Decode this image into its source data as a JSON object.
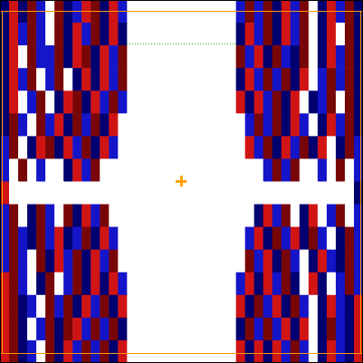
{
  "chart_data": {
    "type": "heatmap",
    "tick_labels": false,
    "color_range": [
      -2,
      2
    ],
    "cells": [
      [
        -2,
        1,
        -2,
        2,
        -1,
        0,
        2,
        -2,
        -1,
        1,
        2,
        -2,
        1,
        -1,
        0,
        0,
        0,
        0,
        0,
        0,
        0,
        0,
        0,
        0,
        0,
        0,
        -1,
        2,
        -1,
        2,
        -2,
        1,
        -1,
        2,
        0,
        -2,
        1,
        -1,
        2,
        -2
      ],
      [
        -2,
        1,
        -1,
        2,
        -1,
        0,
        2,
        -2,
        1,
        -1,
        2,
        -2,
        1,
        -2,
        0,
        0,
        0,
        0,
        0,
        0,
        0,
        0,
        0,
        0,
        0,
        0,
        -2,
        1,
        -1,
        2,
        -2,
        1,
        -1,
        2,
        0,
        -2,
        1,
        0,
        2,
        -2
      ],
      [
        -2,
        1,
        0,
        2,
        -1,
        -1,
        2,
        -2,
        1,
        2,
        -2,
        1,
        -1,
        2,
        0,
        0,
        0,
        0,
        0,
        0,
        0,
        0,
        0,
        0,
        0,
        0,
        2,
        -1,
        1,
        -2,
        2,
        -1,
        -2,
        2,
        0,
        -2,
        1,
        -1,
        2,
        -2
      ],
      [
        -2,
        1,
        -1,
        2,
        0,
        -1,
        2,
        0,
        -2,
        1,
        -2,
        1,
        -1,
        2,
        0,
        0,
        0,
        0,
        0,
        0,
        0,
        0,
        0,
        0,
        0,
        0,
        -2,
        1,
        -1,
        2,
        -1,
        2,
        -2,
        1,
        0,
        -1,
        2,
        -1,
        2,
        -2
      ],
      [
        -2,
        1,
        0,
        -1,
        2,
        0,
        -2,
        1,
        2,
        -2,
        1,
        -1,
        2,
        -1,
        0,
        0,
        0,
        0,
        0,
        0,
        0,
        0,
        0,
        0,
        0,
        0,
        1,
        -2,
        1,
        -1,
        2,
        -2,
        1,
        0,
        -2,
        -1,
        2,
        0,
        2,
        -2
      ],
      [
        -2,
        2,
        -1,
        0,
        2,
        -1,
        1,
        -2,
        2,
        -1,
        2,
        -2,
        1,
        0,
        0,
        0,
        0,
        0,
        0,
        0,
        0,
        0,
        0,
        0,
        0,
        0,
        0,
        -1,
        2,
        -1,
        2,
        -2,
        1,
        -1,
        0,
        -2,
        1,
        -1,
        2,
        -2
      ],
      [
        -1,
        2,
        0,
        -2,
        1,
        2,
        -2,
        1,
        -1,
        2,
        -2,
        1,
        -1,
        0,
        0,
        0,
        0,
        0,
        0,
        0,
        0,
        0,
        0,
        0,
        0,
        0,
        0,
        1,
        -1,
        2,
        -2,
        1,
        -1,
        2,
        -2,
        1,
        0,
        -2,
        2,
        -1
      ],
      [
        -1,
        0,
        2,
        0,
        -1,
        0,
        0,
        -2,
        1,
        -1,
        2,
        0,
        0,
        0,
        0,
        0,
        0,
        0,
        0,
        0,
        0,
        0,
        0,
        0,
        0,
        0,
        0,
        0,
        0,
        -1,
        2,
        -1,
        2,
        0,
        0,
        -1,
        0,
        2,
        0,
        -1
      ],
      [
        1,
        0,
        0,
        0,
        0,
        0,
        0,
        0,
        0,
        0,
        0,
        0,
        0,
        0,
        0,
        0,
        0,
        0,
        0,
        0,
        0,
        0,
        0,
        0,
        0,
        0,
        0,
        0,
        0,
        0,
        0,
        0,
        0,
        0,
        0,
        0,
        0,
        0,
        0,
        -2
      ],
      [
        -1,
        2,
        0,
        -2,
        2,
        -1,
        0,
        2,
        -2,
        1,
        -1,
        2,
        0,
        0,
        0,
        0,
        0,
        0,
        0,
        0,
        0,
        0,
        0,
        0,
        0,
        0,
        0,
        0,
        -2,
        1,
        -1,
        2,
        0,
        -2,
        1,
        0,
        -1,
        2,
        0,
        -1
      ],
      [
        -1,
        2,
        -1,
        -2,
        2,
        -1,
        1,
        -2,
        -1,
        2,
        -2,
        1,
        -1,
        0,
        0,
        0,
        0,
        0,
        0,
        0,
        0,
        0,
        0,
        0,
        0,
        0,
        0,
        -1,
        1,
        -2,
        2,
        -1,
        1,
        -2,
        2,
        -1,
        0,
        -2,
        2,
        -1
      ],
      [
        -1,
        2,
        -1,
        0,
        2,
        -2,
        1,
        -1,
        2,
        -2,
        1,
        -1,
        2,
        0,
        0,
        0,
        0,
        0,
        0,
        0,
        0,
        0,
        0,
        0,
        0,
        0,
        0,
        2,
        -1,
        1,
        -2,
        2,
        -1,
        0,
        -2,
        1,
        -1,
        -2,
        2,
        -1
      ],
      [
        1,
        2,
        -1,
        0,
        -2,
        2,
        0,
        -1,
        2,
        -2,
        1,
        -2,
        1,
        -1,
        0,
        0,
        0,
        0,
        0,
        0,
        0,
        0,
        0,
        0,
        0,
        0,
        -1,
        1,
        -2,
        1,
        -1,
        2,
        -2,
        0,
        1,
        -2,
        0,
        -1,
        2,
        -1
      ],
      [
        1,
        2,
        -2,
        -1,
        0,
        2,
        -1,
        2,
        -2,
        1,
        -1,
        2,
        -2,
        1,
        0,
        0,
        0,
        0,
        0,
        0,
        0,
        0,
        0,
        0,
        0,
        0,
        1,
        -2,
        2,
        -1,
        1,
        -2,
        2,
        -1,
        0,
        -2,
        1,
        -1,
        -2,
        1
      ],
      [
        1,
        2,
        -2,
        0,
        -1,
        2,
        -2,
        2,
        1,
        -1,
        2,
        -1,
        2,
        -2,
        0,
        0,
        0,
        0,
        0,
        0,
        0,
        0,
        0,
        0,
        0,
        0,
        -2,
        2,
        -1,
        2,
        -1,
        1,
        -2,
        1,
        0,
        -2,
        2,
        -1,
        -2,
        1
      ],
      [
        1,
        2,
        -2,
        -1,
        0,
        2,
        -2,
        1,
        -1,
        2,
        -1,
        2,
        -2,
        1,
        0,
        0,
        0,
        0,
        0,
        0,
        0,
        0,
        0,
        0,
        0,
        0,
        1,
        -2,
        1,
        -2,
        1,
        -1,
        2,
        -1,
        0,
        -2,
        1,
        -1,
        -2,
        1
      ]
    ]
  }
}
